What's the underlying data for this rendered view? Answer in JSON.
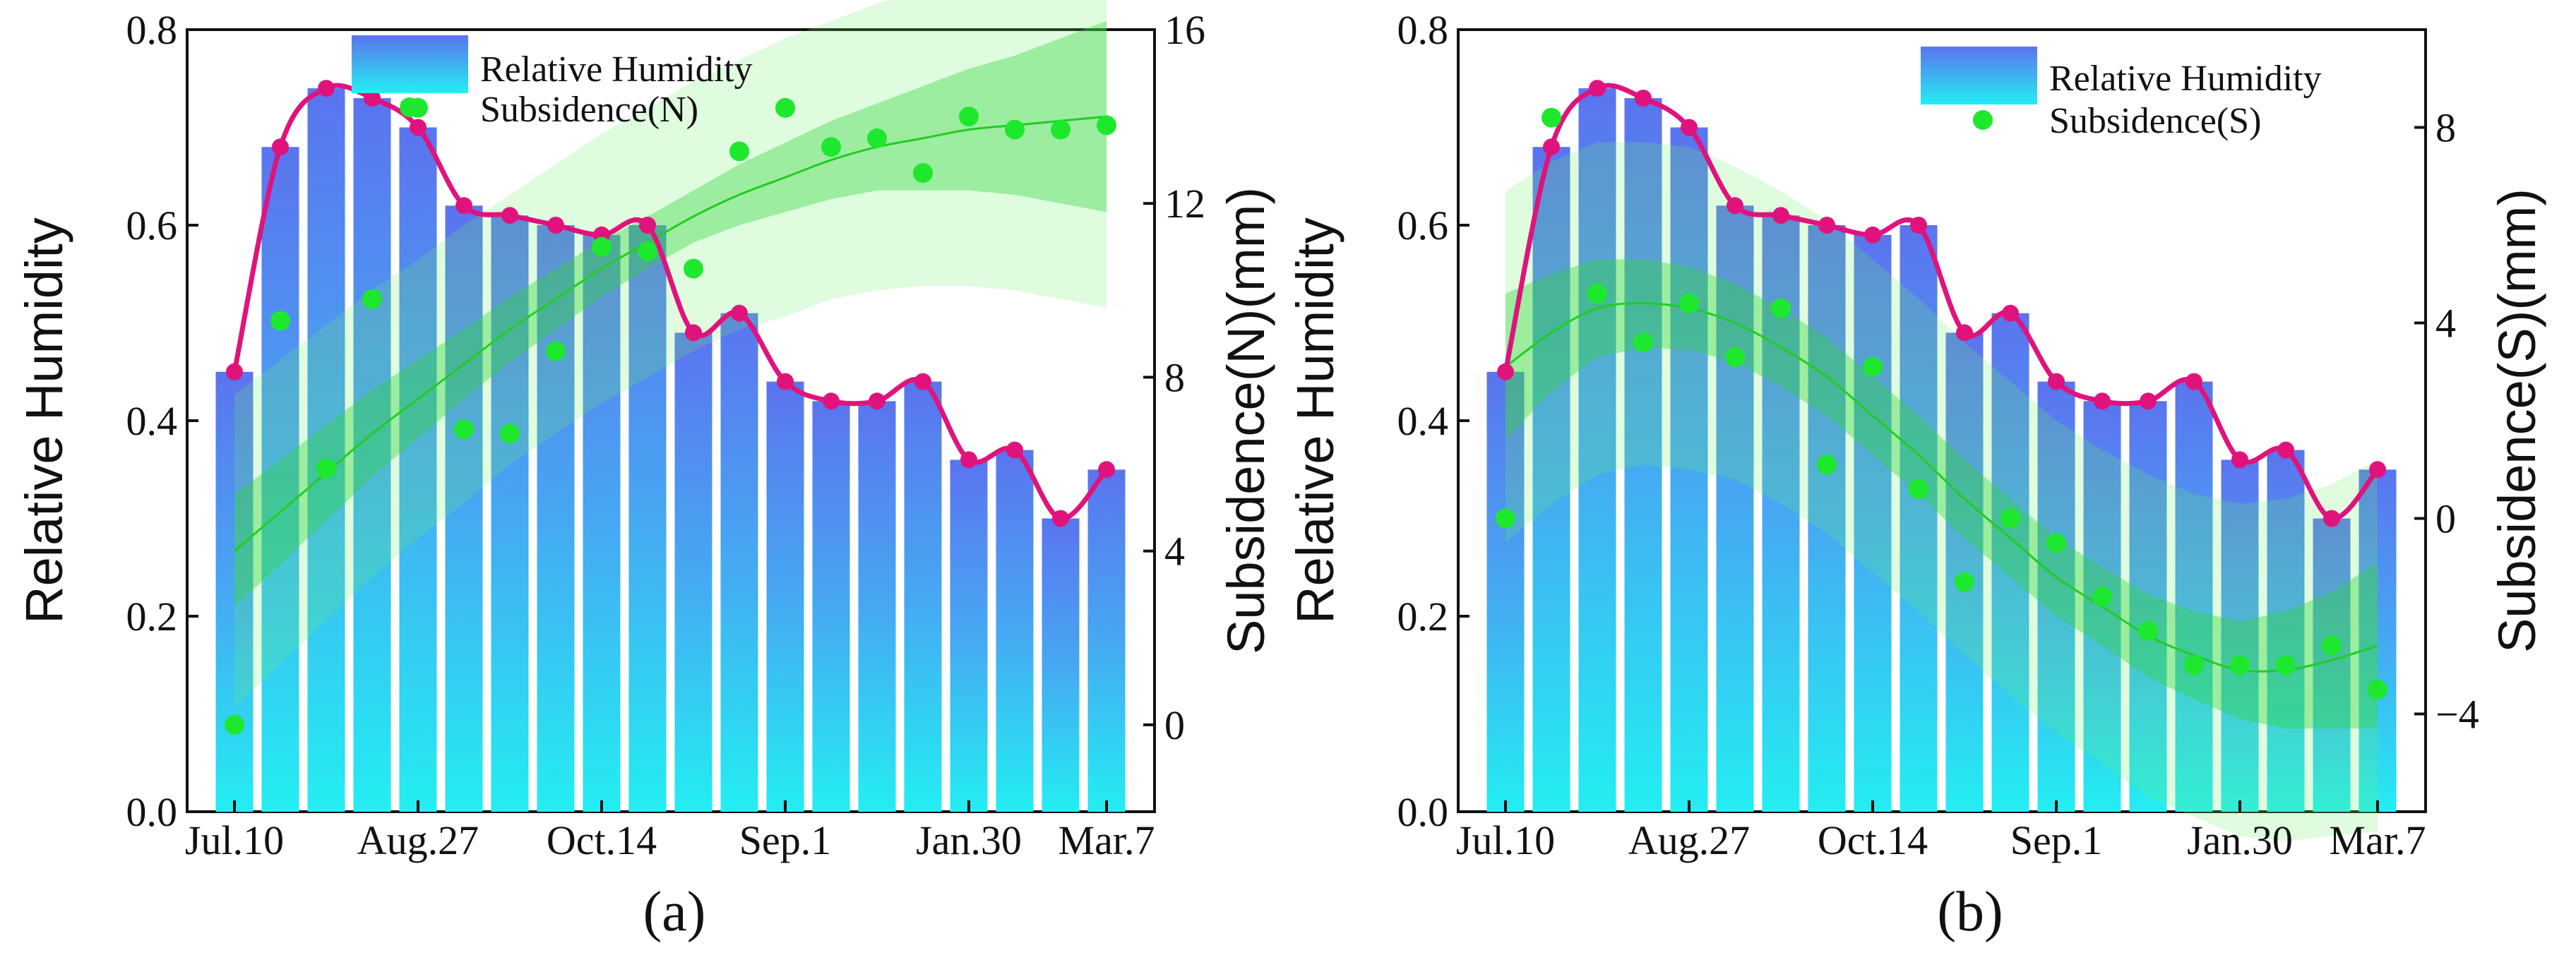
{
  "chart_data": [
    {
      "type": "bar",
      "panel_label": "(a)",
      "ylabel": "Relative Humidity",
      "y2label": "Subsidence(N)(mm)",
      "ylim": [
        0,
        0.8
      ],
      "yticks": [
        "0.0",
        "0.2",
        "0.4",
        "0.6",
        "0.8"
      ],
      "y2lim": [
        -2,
        16
      ],
      "y2ticks": [
        "0",
        "4",
        "8",
        "12",
        "16"
      ],
      "xticks": [
        {
          "label": "Jul.10",
          "index": 0
        },
        {
          "label": "Aug.27",
          "index": 4
        },
        {
          "label": "Oct.14",
          "index": 8
        },
        {
          "label": "Sep.1",
          "index": 12
        },
        {
          "label": "Jan.30",
          "index": 16
        },
        {
          "label": "Mar.7",
          "index": 19
        }
      ],
      "legend": [
        "Relative Humidity",
        "Subsidence(N)"
      ],
      "humidity": [
        0.45,
        0.68,
        0.74,
        0.73,
        0.7,
        0.62,
        0.61,
        0.6,
        0.59,
        0.6,
        0.49,
        0.51,
        0.44,
        0.42,
        0.42,
        0.44,
        0.36,
        0.37,
        0.3,
        0.35
      ],
      "subsidence": [
        0.0,
        9.3,
        5.9,
        9.8,
        14.2,
        6.8,
        6.7,
        8.6,
        11.0,
        10.9,
        10.5,
        13.2,
        14.2,
        13.3,
        13.5,
        12.7,
        14.0,
        13.7,
        13.7,
        13.8
      ],
      "fit": [
        4.0,
        4.9,
        5.8,
        6.7,
        7.5,
        8.3,
        9.1,
        9.8,
        10.5,
        11.1,
        11.7,
        12.2,
        12.6,
        13.0,
        13.3,
        13.5,
        13.7,
        13.8,
        13.9,
        14.0
      ],
      "ci": [
        1.3,
        1.2,
        1.1,
        1.0,
        0.9,
        0.8,
        0.75,
        0.7,
        0.65,
        0.6,
        0.6,
        0.7,
        0.8,
        0.9,
        1.0,
        1.2,
        1.4,
        1.6,
        1.9,
        2.2
      ],
      "pi": [
        3.6,
        3.5,
        3.4,
        3.3,
        3.2,
        3.2,
        3.1,
        3.1,
        3.1,
        3.1,
        3.1,
        3.1,
        3.2,
        3.2,
        3.3,
        3.4,
        3.6,
        3.8,
        4.1,
        4.4
      ]
    },
    {
      "type": "bar",
      "panel_label": "(b)",
      "ylabel": "Relative Humidity",
      "y2label": "Subsidence(S)(mm)",
      "ylim": [
        0,
        0.8
      ],
      "yticks": [
        "0.0",
        "0.2",
        "0.4",
        "0.6",
        "0.8"
      ],
      "y2lim": [
        -6,
        10
      ],
      "y2ticks": [
        "−4",
        "0",
        "4",
        "8"
      ],
      "xticks": [
        {
          "label": "Jul.10",
          "index": 0
        },
        {
          "label": "Aug.27",
          "index": 4
        },
        {
          "label": "Oct.14",
          "index": 8
        },
        {
          "label": "Sep.1",
          "index": 12
        },
        {
          "label": "Jan.30",
          "index": 16
        },
        {
          "label": "Mar.7",
          "index": 19
        }
      ],
      "legend": [
        "Relative Humidity",
        "Subsidence(S)"
      ],
      "humidity": [
        0.45,
        0.68,
        0.74,
        0.73,
        0.7,
        0.62,
        0.61,
        0.6,
        0.59,
        0.6,
        0.49,
        0.51,
        0.44,
        0.42,
        0.42,
        0.44,
        0.36,
        0.37,
        0.3,
        0.35
      ],
      "subsidence": [
        0.0,
        8.2,
        4.6,
        3.6,
        4.4,
        3.3,
        4.3,
        1.1,
        3.1,
        0.6,
        -1.3,
        0.0,
        -0.5,
        -1.6,
        -2.3,
        -3.0,
        -3.0,
        -3.0,
        -2.6,
        -3.5
      ],
      "fit": [
        3.1,
        3.8,
        4.3,
        4.4,
        4.3,
        4.0,
        3.5,
        2.9,
        2.1,
        1.3,
        0.4,
        -0.4,
        -1.2,
        -1.8,
        -2.4,
        -2.8,
        -3.1,
        -3.1,
        -2.9,
        -2.6
      ],
      "ci": [
        1.5,
        1.2,
        1.0,
        0.9,
        0.85,
        0.8,
        0.8,
        0.8,
        0.8,
        0.8,
        0.8,
        0.8,
        0.8,
        0.8,
        0.85,
        0.9,
        1.0,
        1.2,
        1.4,
        1.7
      ],
      "pi": [
        3.6,
        3.5,
        3.4,
        3.3,
        3.3,
        3.2,
        3.2,
        3.2,
        3.2,
        3.2,
        3.2,
        3.2,
        3.2,
        3.2,
        3.3,
        3.3,
        3.4,
        3.5,
        3.6,
        3.8
      ]
    }
  ]
}
